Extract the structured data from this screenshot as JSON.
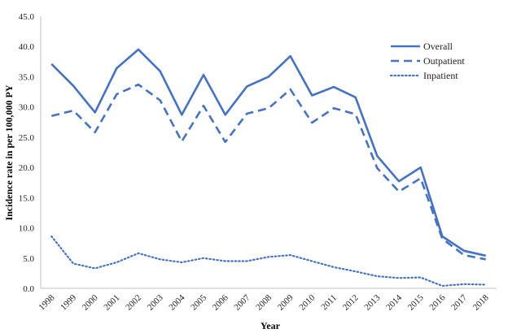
{
  "chart_data": {
    "type": "line",
    "xlabel": "Year",
    "ylabel": "Incidence  rate in per 100,000 PY",
    "ylim": [
      0,
      45
    ],
    "yticks": [
      "0.0",
      "5.0",
      "10.0",
      "15.0",
      "20.0",
      "25.0",
      "30.0",
      "35.0",
      "40.0",
      "45.0"
    ],
    "categories": [
      "1998",
      "1999",
      "2000",
      "2001",
      "2002",
      "2003",
      "2004",
      "2005",
      "2006",
      "2007",
      "2008",
      "2009",
      "2010",
      "2011",
      "2012",
      "2013",
      "2014",
      "2015",
      "2016",
      "2017",
      "2018"
    ],
    "grid": false,
    "legend_position": "top-right",
    "color": "#4472C4",
    "series": [
      {
        "name": "Overall",
        "style": "solid",
        "values": [
          37.1,
          33.5,
          29.1,
          36.4,
          39.5,
          35.9,
          28.7,
          35.3,
          28.7,
          33.4,
          35.0,
          38.4,
          31.9,
          33.3,
          31.6,
          21.9,
          17.7,
          20.0,
          8.6,
          6.2,
          5.4
        ]
      },
      {
        "name": "Outpatient",
        "style": "dashed",
        "values": [
          28.5,
          29.4,
          25.8,
          32.1,
          33.7,
          31.1,
          24.3,
          30.2,
          24.2,
          28.9,
          29.8,
          32.9,
          27.4,
          29.8,
          28.8,
          19.9,
          16.0,
          18.2,
          8.2,
          5.5,
          4.8
        ]
      },
      {
        "name": "Inpatient",
        "style": "dotted",
        "values": [
          8.6,
          4.1,
          3.3,
          4.3,
          5.8,
          4.8,
          4.3,
          5.0,
          4.5,
          4.5,
          5.2,
          5.5,
          4.5,
          3.5,
          2.8,
          2.0,
          1.7,
          1.8,
          0.4,
          0.7,
          0.6
        ]
      }
    ]
  }
}
